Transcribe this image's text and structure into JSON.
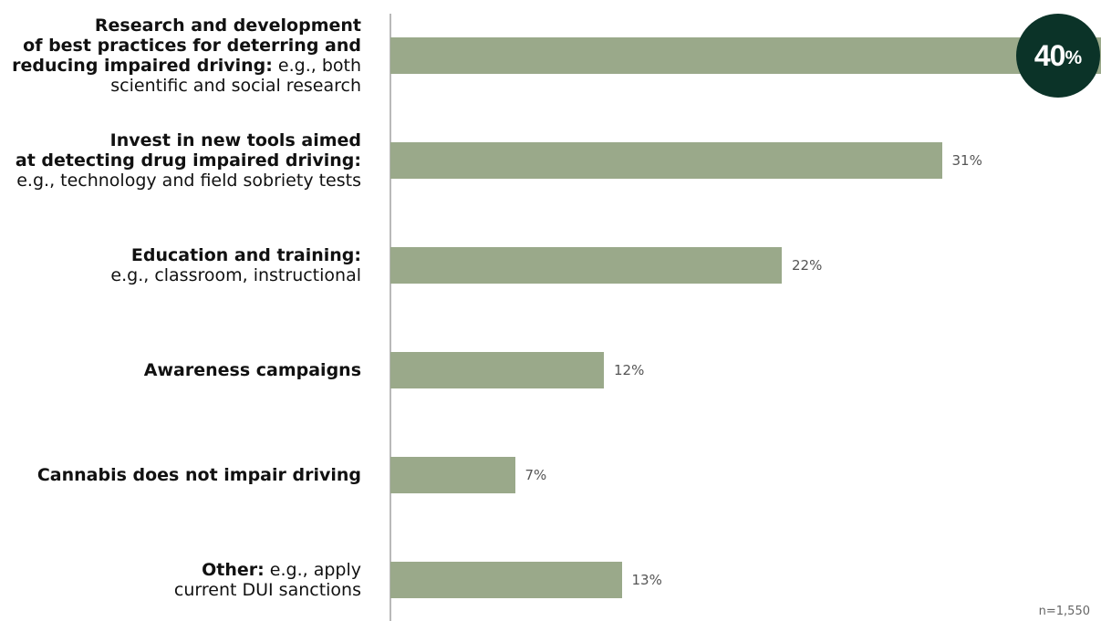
{
  "chart_data": {
    "type": "bar",
    "orientation": "horizontal",
    "xlim": [
      0,
      40
    ],
    "value_suffix": "%",
    "categories": [
      {
        "lines": [
          [
            {
              "text": "Research and development",
              "bold": true
            }
          ],
          [
            {
              "text": "of best practices for deterring and",
              "bold": true
            }
          ],
          [
            {
              "text": "reducing impaired driving:",
              "bold": true
            },
            {
              "text": " e.g., both",
              "bold": false
            }
          ],
          [
            {
              "text": "scientific and social research",
              "bold": false
            }
          ]
        ]
      },
      {
        "lines": [
          [
            {
              "text": "Invest in new tools aimed",
              "bold": true
            }
          ],
          [
            {
              "text": "at detecting drug impaired driving:",
              "bold": true
            }
          ],
          [
            {
              "text": "e.g., technology and field sobriety tests",
              "bold": false
            }
          ]
        ]
      },
      {
        "lines": [
          [
            {
              "text": "Education and training:",
              "bold": true
            }
          ],
          [
            {
              "text": "e.g., classroom, instructional",
              "bold": false
            }
          ]
        ]
      },
      {
        "lines": [
          [
            {
              "text": "Awareness campaigns",
              "bold": true
            }
          ]
        ]
      },
      {
        "lines": [
          [
            {
              "text": "Cannabis does not impair driving",
              "bold": true
            }
          ]
        ]
      },
      {
        "lines": [
          [
            {
              "text": "Other:",
              "bold": true
            },
            {
              "text": " e.g., apply",
              "bold": false
            }
          ],
          [
            {
              "text": "current DUI sanctions",
              "bold": false
            }
          ]
        ]
      }
    ],
    "values": [
      40,
      31,
      22,
      12,
      7,
      13
    ],
    "value_labels": [
      "40",
      "31%",
      "22%",
      "12%",
      "7%",
      "13%"
    ],
    "highlight": {
      "index": 0,
      "number": "40",
      "suffix": "%"
    },
    "colors": {
      "bar": "#9aa98a",
      "highlight_circle": "#0b3328",
      "axis": "#b9b9b9"
    }
  },
  "footnote": "n=1,550"
}
